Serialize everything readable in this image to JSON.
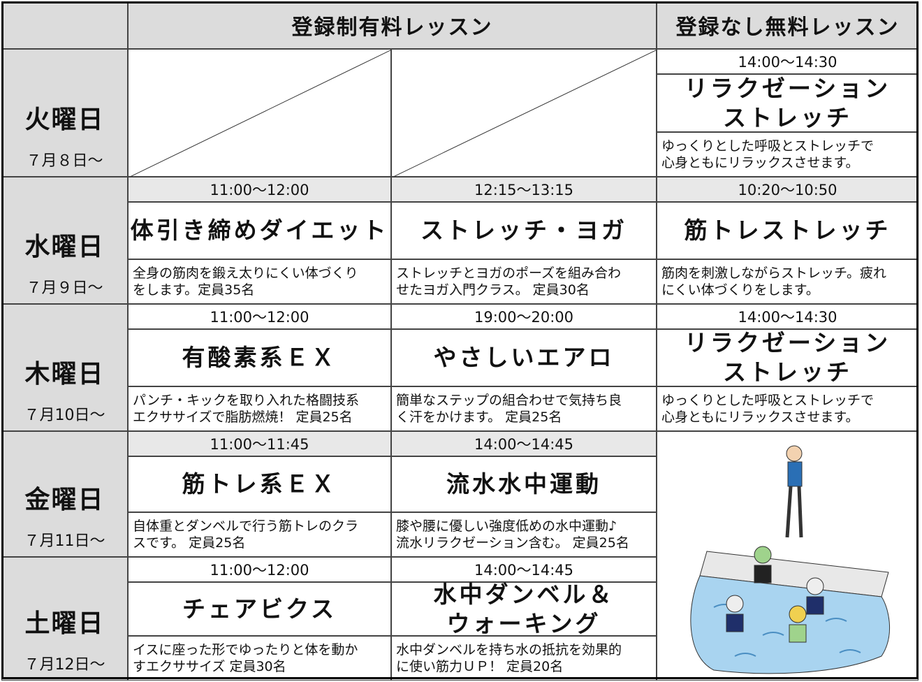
{
  "header": {
    "paid": "登録制有料レッスン",
    "free": "登録なし無料レッスン"
  },
  "days": [
    {
      "day": "火曜日",
      "date": "７月８日～",
      "paid": [],
      "free": {
        "time": "14:00～14:30",
        "name": [
          "リラクゼーション",
          "ストレッチ"
        ],
        "desc": [
          "ゆっくりとした呼吸とストレッチで",
          "心身ともにリラックスさせます。"
        ]
      }
    },
    {
      "day": "水曜日",
      "date": "７月９日～",
      "paid": [
        {
          "time": "11:00～12:00",
          "name": [
            "体引き締めダイエット"
          ],
          "desc": [
            "全身の筋肉を鍛え太りにくい体づくり",
            "をします。定員35名"
          ]
        },
        {
          "time": "12:15～13:15",
          "name": [
            "ストレッチ・ヨガ"
          ],
          "desc": [
            "ストレッチとヨガのポーズを組み合わ",
            "せたヨガ入門クラス。 定員30名"
          ]
        }
      ],
      "free": {
        "time": "10:20～10:50",
        "name": [
          "筋トレストレッチ"
        ],
        "desc": [
          "筋肉を刺激しながらストレッチ。疲れ",
          "にくい体づくりをします。"
        ]
      }
    },
    {
      "day": "木曜日",
      "date": "７月10日～",
      "paid": [
        {
          "time": "11:00～12:00",
          "name": [
            "有酸素系ＥＸ"
          ],
          "desc": [
            "パンチ・キックを取り入れた格闘技系",
            "エクササイズで脂肪燃焼！ 定員25名"
          ]
        },
        {
          "time": "19:00～20:00",
          "name": [
            "やさしいエアロ"
          ],
          "desc": [
            "簡単なステップの組合わせで気持ち良",
            "く汗をかけます。 定員25名"
          ]
        }
      ],
      "free": {
        "time": "14:00～14:30",
        "name": [
          "リラクゼーション",
          "ストレッチ"
        ],
        "desc": [
          "ゆっくりとした呼吸とストレッチで",
          "心身ともにリラックスさせます。"
        ]
      }
    },
    {
      "day": "金曜日",
      "date": "７月11日～",
      "paid": [
        {
          "time": "11:00～11:45",
          "name": [
            "筋トレ系ＥＸ"
          ],
          "desc": [
            "自体重とダンベルで行う筋トレのクラ",
            "スです。 定員25名"
          ]
        },
        {
          "time": "14:00～14:45",
          "name": [
            "流水水中運動"
          ],
          "desc": [
            "膝や腰に優しい強度低めの水中運動♪",
            "流水リラクゼーション含む。 定員25名"
          ]
        }
      ]
    },
    {
      "day": "土曜日",
      "date": "７月12日～",
      "paid": [
        {
          "time": "11:00～12:00",
          "name": [
            "チェアビクス"
          ],
          "desc": [
            "イスに座った形でゆったりと体を動か",
            "すエクササイズ 定員30名"
          ]
        },
        {
          "time": "14:00～14:45",
          "name": [
            "水中ダンベル＆",
            "ウォーキング"
          ],
          "desc": [
            "水中ダンベルを持ち水の抵抗を効果的",
            "に使い筋力ＵＰ！ 定員20名"
          ]
        }
      ]
    }
  ]
}
